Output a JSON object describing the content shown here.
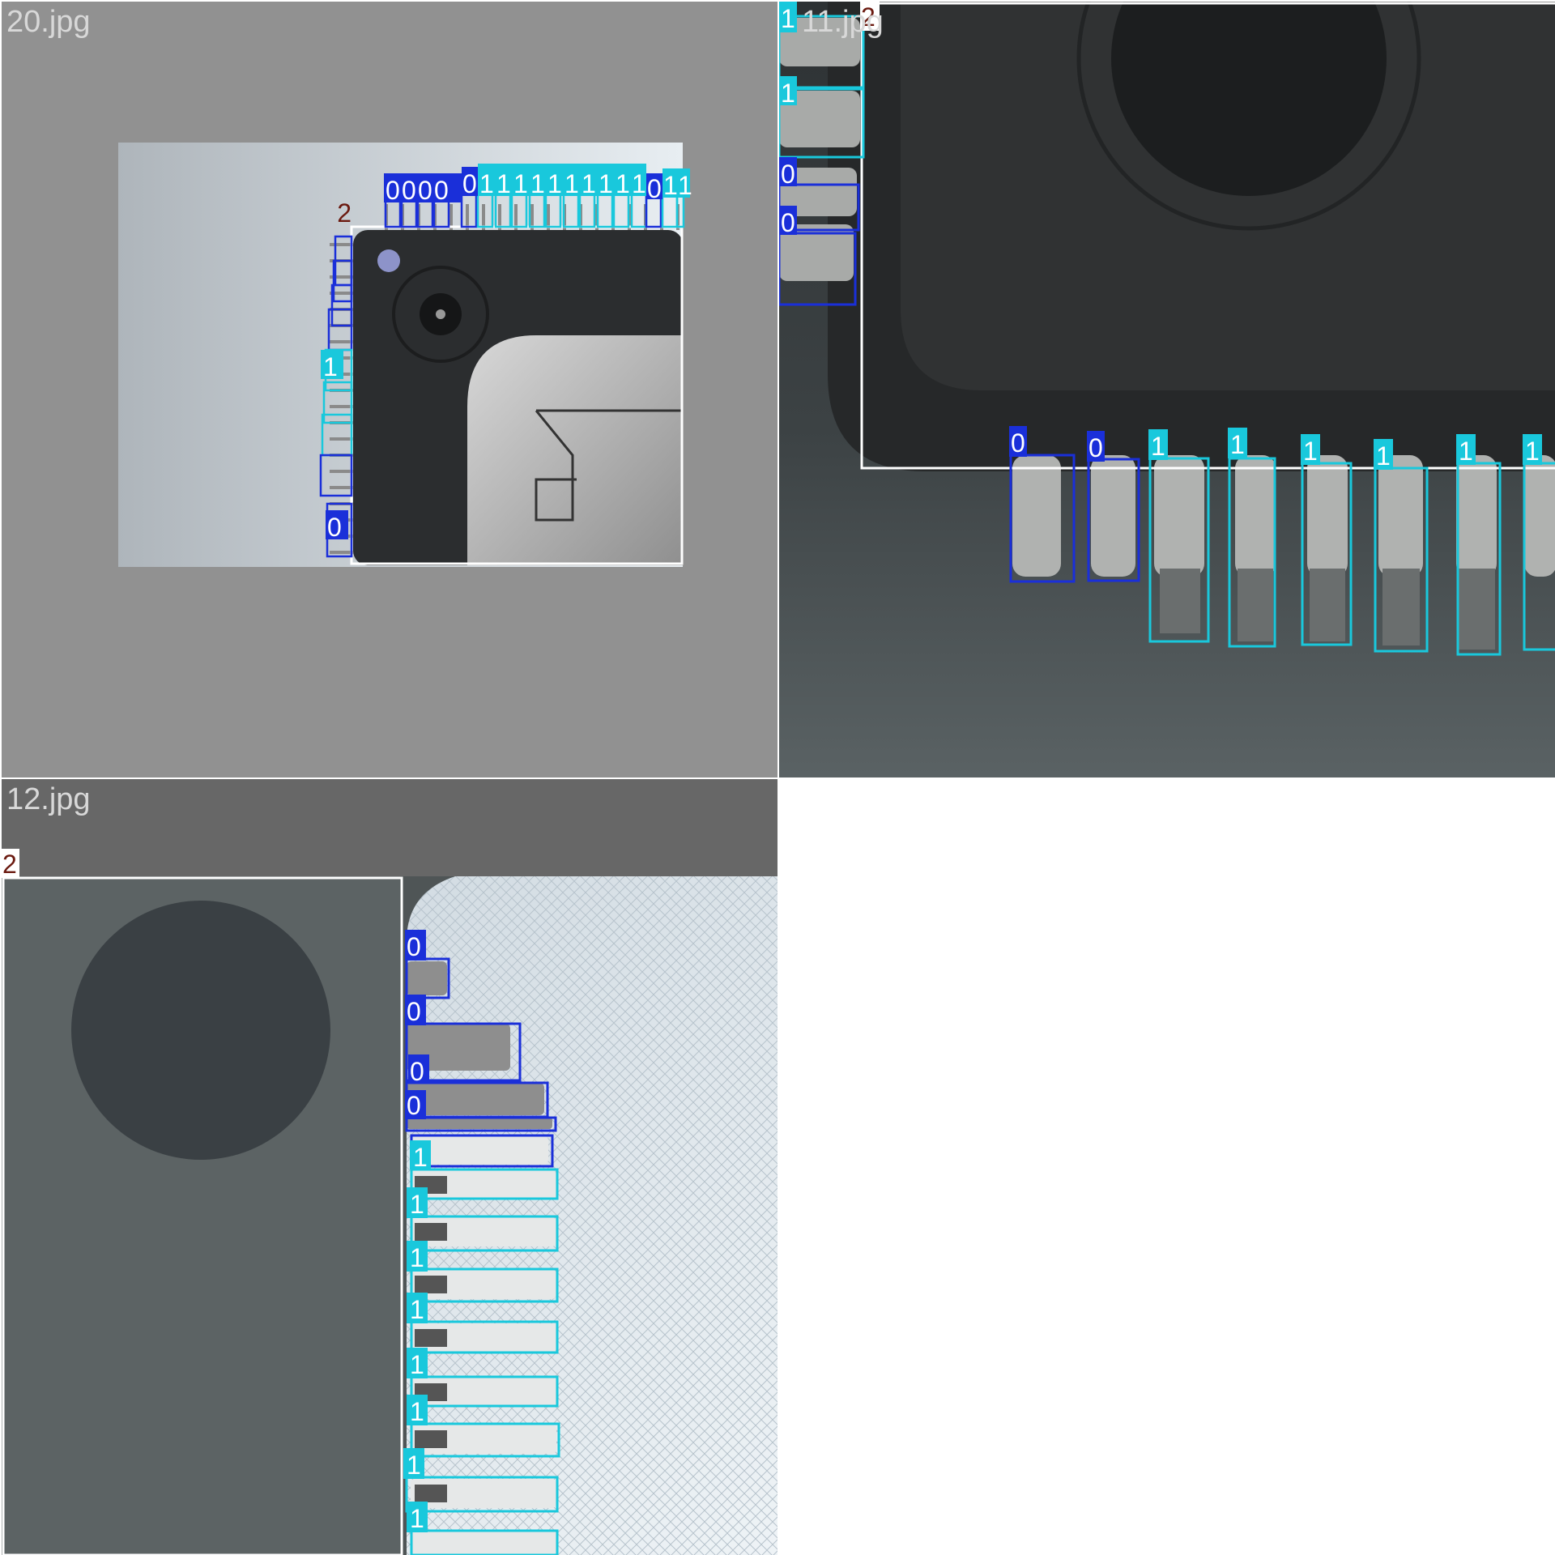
{
  "mosaic": {
    "tiles": [
      {
        "filename": "20.jpg"
      },
      {
        "filename": "11.jpg"
      },
      {
        "filename": "12.jpg"
      }
    ]
  },
  "classes": {
    "0": {
      "label": "0",
      "color": "#1a2fd9"
    },
    "1": {
      "label": "1",
      "color": "#19c8dc"
    },
    "2": {
      "label": "2",
      "color": "#ffffff"
    }
  }
}
